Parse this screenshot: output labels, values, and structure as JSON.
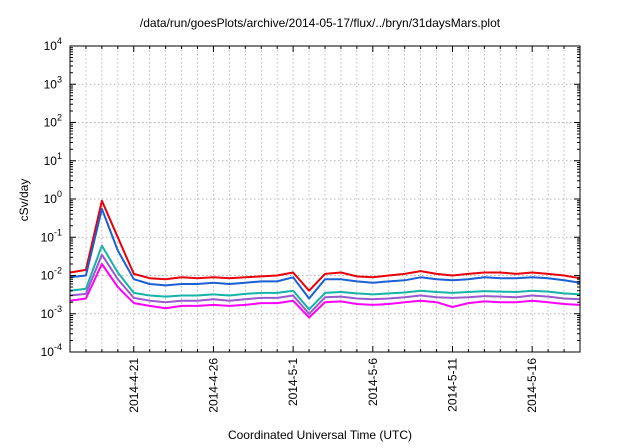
{
  "chart_data": {
    "type": "line",
    "title": "/data/run/goesPlots/archive/2014-05-17/flux/../bryn/31daysMars.plot",
    "xlabel": "Coordinated Universal Time (UTC)",
    "ylabel": "cSv/day",
    "yscale": "log",
    "ylim": [
      0.0001,
      10000
    ],
    "xlim": [
      "2014-04-17",
      "2014-05-19"
    ],
    "x_tick_labels": [
      "2014-4-21",
      "2014-4-26",
      "2014-5-1",
      "2014-5-6",
      "2014-5-11",
      "2014-5-16"
    ],
    "y_tick_labels": [
      {
        "base": "10",
        "exp": "-4"
      },
      {
        "base": "10",
        "exp": "-3"
      },
      {
        "base": "10",
        "exp": "-2"
      },
      {
        "base": "10",
        "exp": "-1"
      },
      {
        "base": "10",
        "exp": "0"
      },
      {
        "base": "10",
        "exp": "1"
      },
      {
        "base": "10",
        "exp": "2"
      },
      {
        "base": "10",
        "exp": "3"
      },
      {
        "base": "10",
        "exp": "4"
      }
    ],
    "grid": true,
    "legend": "none",
    "x": [
      "2014-04-17",
      "2014-04-18",
      "2014-04-19",
      "2014-04-20",
      "2014-04-21",
      "2014-04-22",
      "2014-04-23",
      "2014-04-24",
      "2014-04-25",
      "2014-04-26",
      "2014-04-27",
      "2014-04-28",
      "2014-04-29",
      "2014-04-30",
      "2014-05-01",
      "2014-05-02",
      "2014-05-03",
      "2014-05-04",
      "2014-05-05",
      "2014-05-06",
      "2014-05-07",
      "2014-05-08",
      "2014-05-09",
      "2014-05-10",
      "2014-05-11",
      "2014-05-12",
      "2014-05-13",
      "2014-05-14",
      "2014-05-15",
      "2014-05-16",
      "2014-05-17",
      "2014-05-18",
      "2014-05-19"
    ],
    "series": [
      {
        "color": "#e8000b",
        "values": [
          0.012,
          0.014,
          0.9,
          0.1,
          0.011,
          0.0085,
          0.008,
          0.009,
          0.0085,
          0.009,
          0.0085,
          0.009,
          0.0095,
          0.01,
          0.012,
          0.004,
          0.011,
          0.012,
          0.0095,
          0.009,
          0.01,
          0.011,
          0.013,
          0.011,
          0.01,
          0.011,
          0.012,
          0.012,
          0.011,
          0.012,
          0.011,
          0.01,
          0.0085
        ]
      },
      {
        "color": "#1a5fd4",
        "values": [
          0.009,
          0.01,
          0.55,
          0.045,
          0.008,
          0.006,
          0.0055,
          0.006,
          0.006,
          0.0065,
          0.006,
          0.0065,
          0.007,
          0.007,
          0.009,
          0.0025,
          0.008,
          0.008,
          0.007,
          0.0065,
          0.007,
          0.0075,
          0.009,
          0.008,
          0.0075,
          0.008,
          0.009,
          0.0085,
          0.0085,
          0.009,
          0.0085,
          0.0075,
          0.0065
        ]
      },
      {
        "color": "#16b3a8",
        "values": [
          0.004,
          0.0045,
          0.06,
          0.012,
          0.0035,
          0.003,
          0.0028,
          0.003,
          0.003,
          0.0032,
          0.003,
          0.0033,
          0.0035,
          0.0035,
          0.004,
          0.0013,
          0.0035,
          0.0037,
          0.0034,
          0.0032,
          0.0034,
          0.0036,
          0.004,
          0.0037,
          0.0035,
          0.0037,
          0.0039,
          0.0038,
          0.0037,
          0.004,
          0.0038,
          0.0034,
          0.0032
        ]
      },
      {
        "color": "#9b59d0",
        "values": [
          0.003,
          0.0033,
          0.035,
          0.008,
          0.0026,
          0.0022,
          0.002,
          0.0022,
          0.0022,
          0.0024,
          0.0022,
          0.0024,
          0.0026,
          0.0026,
          0.003,
          0.001,
          0.0027,
          0.0028,
          0.0025,
          0.0024,
          0.0025,
          0.0027,
          0.003,
          0.0027,
          0.0026,
          0.0027,
          0.0029,
          0.0028,
          0.0027,
          0.003,
          0.0028,
          0.0025,
          0.0024
        ]
      },
      {
        "color": "#ff00ff",
        "values": [
          0.0022,
          0.0025,
          0.02,
          0.005,
          0.0019,
          0.0016,
          0.0014,
          0.0016,
          0.0016,
          0.0017,
          0.0016,
          0.0017,
          0.0019,
          0.0019,
          0.0022,
          0.0008,
          0.002,
          0.0021,
          0.0018,
          0.0017,
          0.0018,
          0.002,
          0.0022,
          0.002,
          0.0015,
          0.0019,
          0.0021,
          0.002,
          0.002,
          0.0022,
          0.002,
          0.0018,
          0.0017
        ]
      }
    ]
  }
}
